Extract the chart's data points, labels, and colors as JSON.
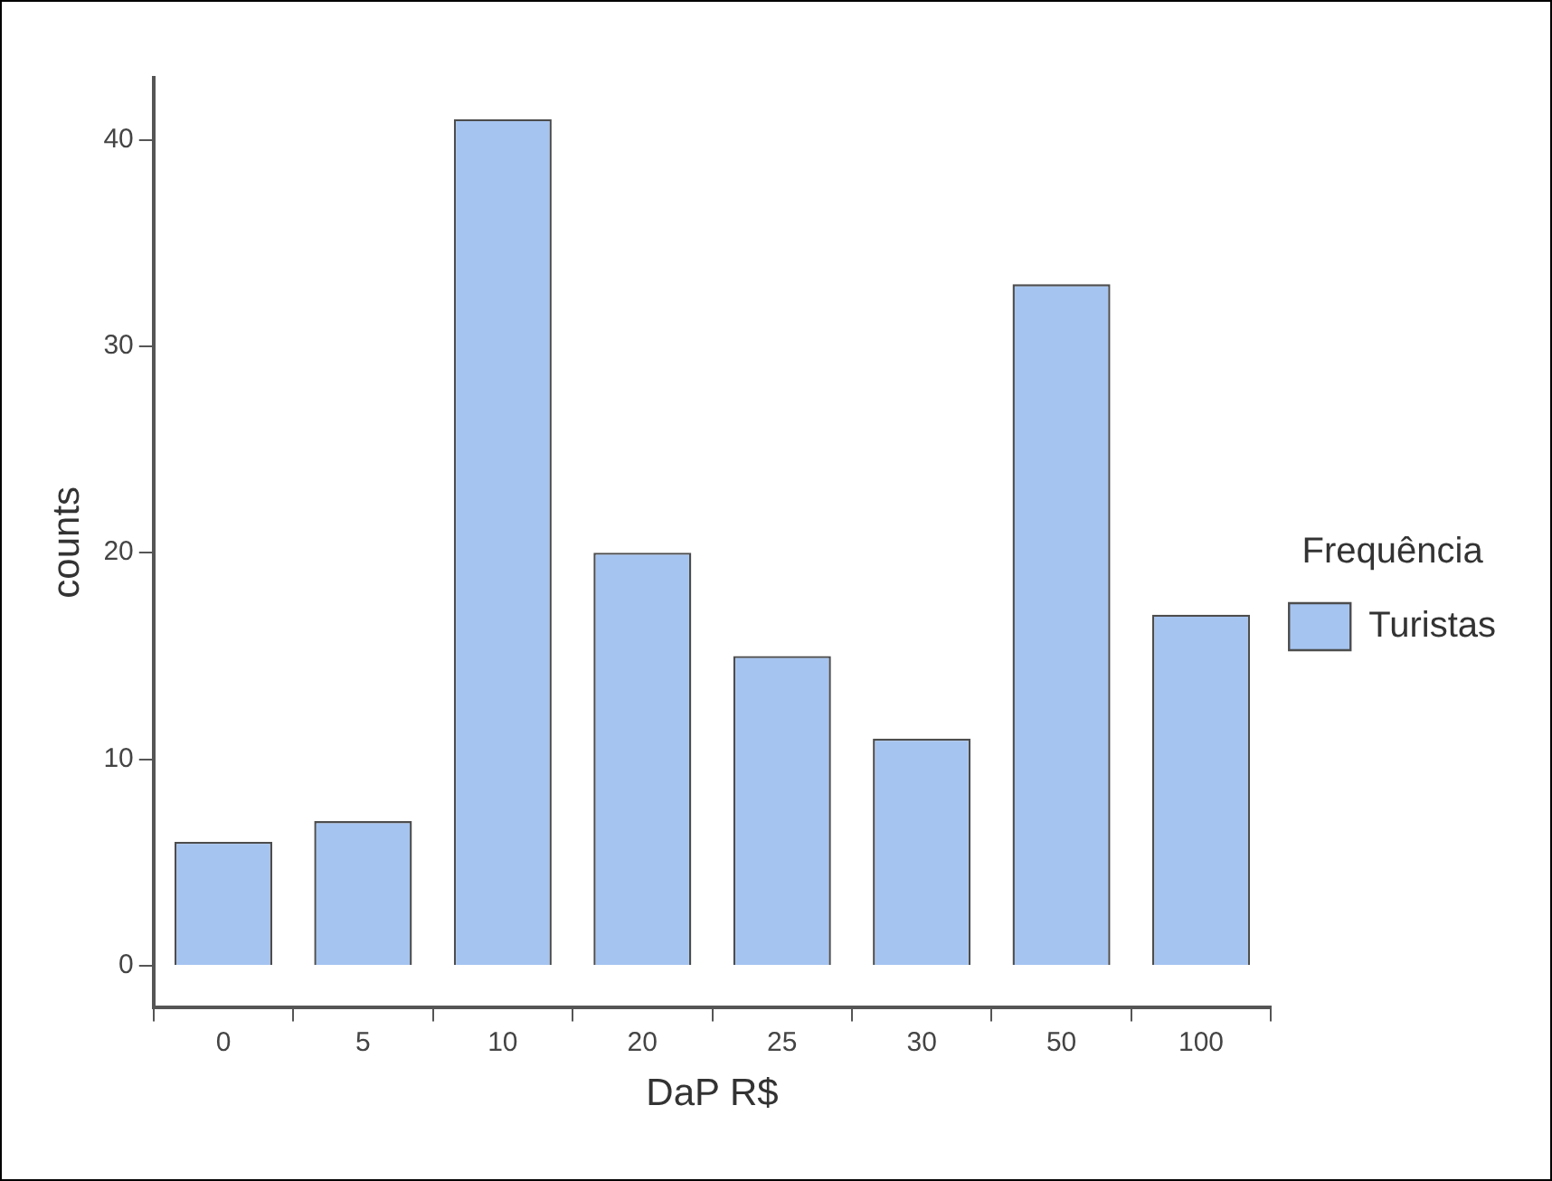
{
  "chart_data": {
    "type": "bar",
    "xlabel": "DaP R$",
    "ylabel": "counts",
    "legend_title": "Frequência",
    "categories": [
      "0",
      "5",
      "10",
      "20",
      "25",
      "30",
      "50",
      "100"
    ],
    "series": [
      {
        "name": "Turistas",
        "color": "#a6c4f0",
        "values": [
          6,
          7,
          41,
          20,
          15,
          11,
          33,
          17
        ]
      }
    ],
    "ylim": [
      -2,
      43
    ],
    "yticks": [
      0,
      10,
      20,
      30,
      40
    ],
    "grid": false,
    "legend": "right"
  }
}
